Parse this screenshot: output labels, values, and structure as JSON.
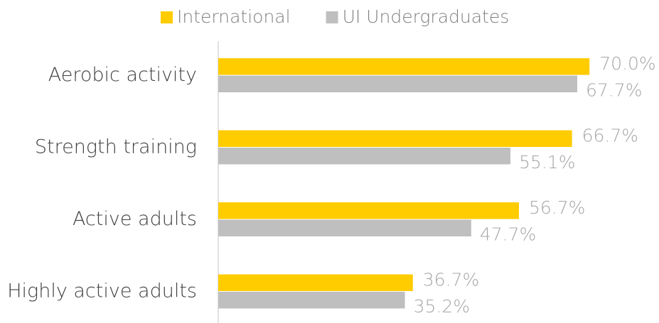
{
  "chart_data": {
    "type": "bar",
    "orientation": "horizontal",
    "categories": [
      "Aerobic activity",
      "Strength training",
      "Active adults",
      "Highly active adults"
    ],
    "series": [
      {
        "name": "International",
        "color": "#ffcc00",
        "values": [
          70.0,
          66.7,
          56.7,
          36.7
        ],
        "value_labels": [
          "70.0%",
          "66.7%",
          "56.7%",
          "36.7%"
        ]
      },
      {
        "name": "UI Undergraduates",
        "color": "#bfbfbf",
        "values": [
          67.7,
          55.1,
          47.7,
          35.2
        ],
        "value_labels": [
          "67.7%",
          "55.1%",
          "47.7%",
          "35.2%"
        ]
      }
    ],
    "legend": "top"
  }
}
